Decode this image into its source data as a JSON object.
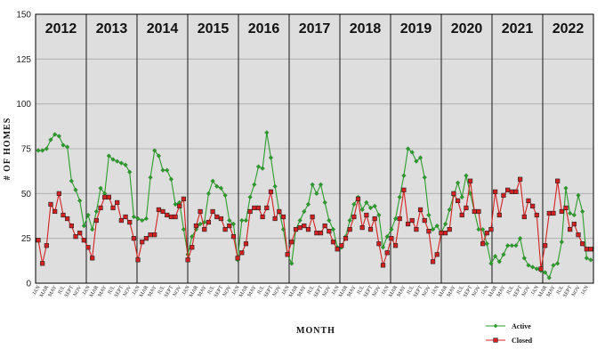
{
  "chart_data": {
    "type": "line",
    "xlabel": "MONTH",
    "ylabel": "# OF HOMES",
    "ylim": [
      0,
      150
    ],
    "yticks": [
      0,
      25,
      50,
      75,
      100,
      125,
      150
    ],
    "grid": true,
    "legend_position": "bottom-right",
    "years": [
      "2012",
      "2013",
      "2014",
      "2015",
      "2016",
      "2017",
      "2018",
      "2019",
      "2020",
      "2021",
      "2022"
    ],
    "month_tick_labels": [
      "JAN",
      "MAR",
      "MAY",
      "JUL",
      "SEPT",
      "NOV"
    ],
    "series": [
      {
        "name": "Active",
        "color": "#2a9d2a",
        "marker": "diamond",
        "values": [
          74,
          74,
          75,
          80,
          83,
          82,
          77,
          76,
          57,
          52,
          46,
          32,
          38,
          30,
          40,
          53,
          50,
          71,
          69,
          68,
          67,
          66,
          62,
          37,
          36,
          35,
          36,
          59,
          74,
          71,
          63,
          63,
          58,
          44,
          45,
          30,
          16,
          26,
          30,
          33,
          34,
          50,
          57,
          54,
          53,
          49,
          35,
          33,
          13,
          35,
          35,
          48,
          55,
          65,
          64,
          84,
          70,
          54,
          40,
          30,
          16,
          11,
          30,
          35,
          40,
          44,
          55,
          50,
          55,
          45,
          35,
          30,
          20,
          20,
          26,
          35,
          44,
          48,
          41,
          45,
          42,
          43,
          38,
          20,
          26,
          30,
          36,
          48,
          60,
          75,
          73,
          68,
          70,
          59,
          38,
          30,
          32,
          28,
          33,
          41,
          49,
          56,
          48,
          60,
          50,
          40,
          30,
          30,
          22,
          11,
          15,
          12,
          16,
          21,
          21,
          21,
          25,
          14,
          10,
          9,
          8,
          7,
          6,
          3,
          10,
          11,
          23,
          53,
          39,
          38,
          49,
          40,
          14,
          13
        ],
        "value_type": "approximate readings across 134 monthly points (Jan 2012 – Feb 2023)"
      },
      {
        "name": "Closed",
        "color": "#d62020",
        "marker": "square",
        "values": [
          24,
          11,
          21,
          44,
          40,
          50,
          38,
          36,
          32,
          26,
          28,
          24,
          20,
          14,
          35,
          42,
          48,
          48,
          42,
          45,
          35,
          37,
          34,
          25,
          13,
          23,
          25,
          27,
          27,
          41,
          40,
          38,
          37,
          37,
          43,
          47,
          13,
          20,
          32,
          40,
          30,
          34,
          40,
          37,
          36,
          30,
          32,
          26,
          14,
          17,
          22,
          40,
          42,
          42,
          37,
          42,
          51,
          36,
          40,
          37,
          16,
          23,
          30,
          31,
          32,
          30,
          37,
          28,
          28,
          32,
          29,
          23,
          19,
          21,
          25,
          30,
          37,
          47,
          31,
          38,
          30,
          36,
          22,
          10,
          17,
          25,
          21,
          36,
          52,
          33,
          35,
          30,
          41,
          35,
          29,
          12,
          16,
          28,
          28,
          30,
          50,
          46,
          38,
          42,
          57,
          40,
          40,
          22,
          28,
          30,
          51,
          38,
          49,
          52,
          51,
          51,
          58,
          37,
          46,
          43,
          38,
          8,
          21,
          39,
          39,
          57,
          40,
          42,
          30,
          33,
          27,
          22,
          19,
          19
        ]
      }
    ]
  }
}
